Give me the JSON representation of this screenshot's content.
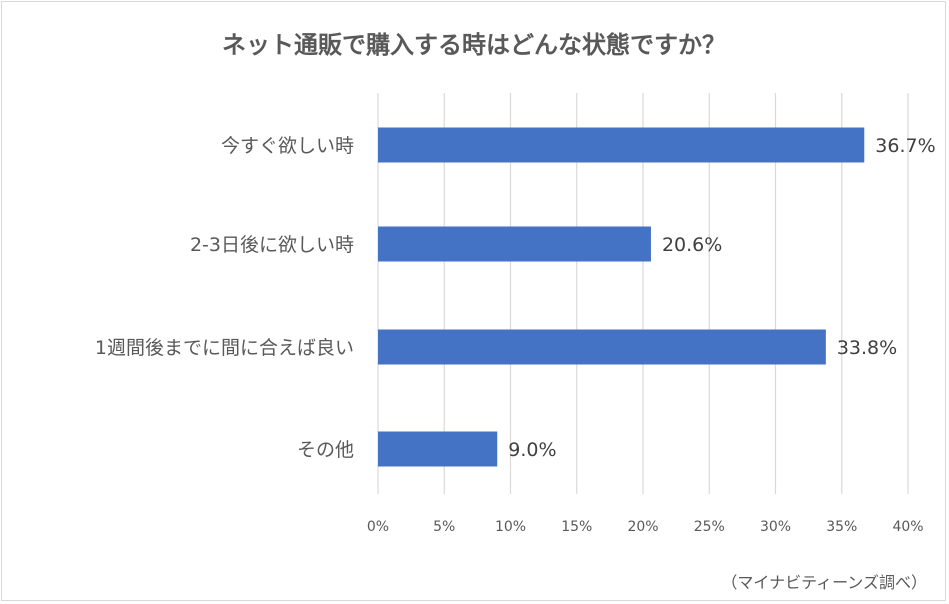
{
  "chart_data": {
    "type": "bar",
    "orientation": "horizontal",
    "title": "ネット通販で購入する時はどんな状態ですか？",
    "categories": [
      "今すぐ欲しい時",
      "2-3日後に欲しい時",
      "1週間後までに間に合えば良い",
      "その他"
    ],
    "values": [
      36.7,
      20.6,
      33.8,
      9.0
    ],
    "value_labels": [
      "36.7%",
      "20.6%",
      "33.8%",
      "9.0%"
    ],
    "x_ticks": [
      "0%",
      "5%",
      "10%",
      "15%",
      "20%",
      "25%",
      "30%",
      "35%",
      "40%"
    ],
    "xlim": [
      0,
      40
    ],
    "grid": true,
    "bar_color": "#4472C4",
    "source_note": "（マイナビティーンズ調べ）"
  }
}
